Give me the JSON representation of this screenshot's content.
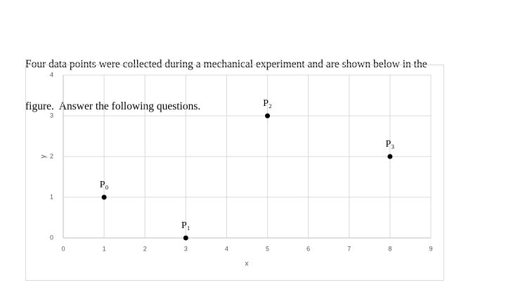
{
  "question": {
    "lines": [
      "Four data points were collected during a mechanical experiment and are shown below in the",
      "figure.  Answer the following questions."
    ]
  },
  "chart_data": {
    "type": "scatter",
    "x": [
      1,
      3,
      5,
      8
    ],
    "y": [
      1,
      0,
      3,
      2
    ],
    "point_labels": [
      "P₀",
      "P₁",
      "P₂",
      "P₃"
    ],
    "xlabel": "x",
    "ylabel": "y",
    "xlim": [
      0,
      9
    ],
    "ylim": [
      0,
      4
    ],
    "xticks": [
      0,
      1,
      2,
      3,
      4,
      5,
      6,
      7,
      8,
      9
    ],
    "yticks": [
      0,
      1,
      2,
      3,
      4
    ],
    "grid": true,
    "color": "#000000"
  }
}
